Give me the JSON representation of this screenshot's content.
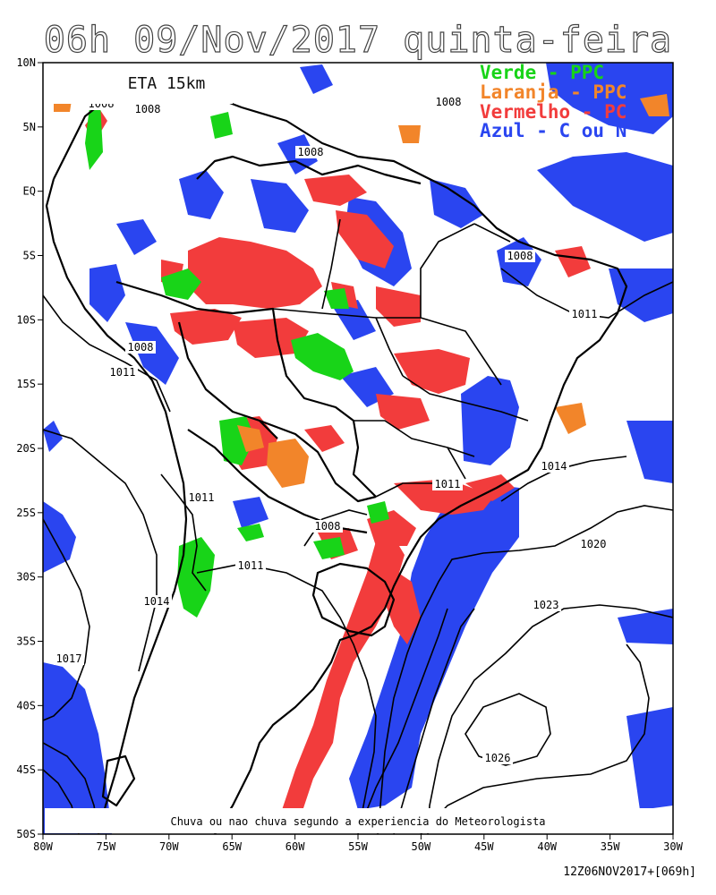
{
  "title": "06h 09/Nov/2017 quinta-feira",
  "model_label": "ETA 15km",
  "legend": [
    {
      "text": "Verde - PPC",
      "color": "#18d418"
    },
    {
      "text": "Laranja - PPC",
      "color": "#f2852a"
    },
    {
      "text": "Vermelho - PC",
      "color": "#f23c3c"
    },
    {
      "text": "Azul - C ou N",
      "color": "#2a45f0"
    }
  ],
  "footnote": "Chuva ou nao chuva segundo a experiencia do Meteorologista",
  "run_label": "12Z06NOV2017+[069h]",
  "lat_ticks": [
    "10N",
    "5N",
    "EQ",
    "5S",
    "10S",
    "15S",
    "20S",
    "25S",
    "30S",
    "35S",
    "40S",
    "45S",
    "50S"
  ],
  "lon_ticks": [
    "80W",
    "75W",
    "70W",
    "65W",
    "60W",
    "55W",
    "50W",
    "45W",
    "40W",
    "35W",
    "30W"
  ],
  "isobar_labels": [
    "1008",
    "1008",
    "1008",
    "1008",
    "1008",
    "1008",
    "1008",
    "1011",
    "1011",
    "1011",
    "1011",
    "1011",
    "1014",
    "1014",
    "1017",
    "1020",
    "1023",
    "1026"
  ],
  "colors": {
    "green": "#18d418",
    "orange": "#f2852a",
    "red": "#f23c3c",
    "blue": "#2a45f0",
    "frame": "#000000"
  }
}
